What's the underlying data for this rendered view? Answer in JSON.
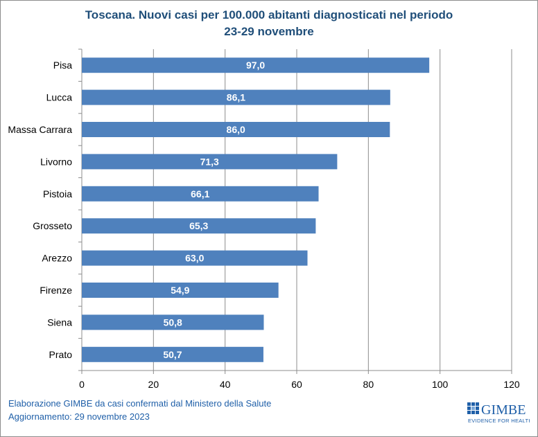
{
  "chart_data": {
    "type": "bar",
    "orientation": "horizontal",
    "title": "Toscana. Nuovi casi per 100.000 abitanti diagnosticati nel periodo",
    "subtitle": "23-29 novembre",
    "categories": [
      "Pisa",
      "Lucca",
      "Massa Carrara",
      "Livorno",
      "Pistoia",
      "Grosseto",
      "Arezzo",
      "Firenze",
      "Siena",
      "Prato"
    ],
    "values": [
      97.0,
      86.1,
      86.0,
      71.3,
      66.1,
      65.3,
      63.0,
      54.9,
      50.8,
      50.7
    ],
    "value_labels": [
      "97,0",
      "86,1",
      "86,0",
      "71,3",
      "66,1",
      "65,3",
      "63,0",
      "54,9",
      "50,8",
      "50,7"
    ],
    "xlim": [
      0,
      120
    ],
    "xticks": [
      0,
      20,
      40,
      60,
      80,
      100,
      120
    ],
    "grid": "vertical",
    "bar_color": "#4f81bd",
    "label_color": "#ffffff"
  },
  "footer": {
    "line1": "Elaborazione GIMBE da casi confermati dal Ministero della Salute",
    "line2": "Aggiornamento: 29 novembre 2023"
  },
  "logo": {
    "name": "GIMBE",
    "tagline": "EVIDENCE FOR HEALTH",
    "color": "#1f5fa8"
  }
}
